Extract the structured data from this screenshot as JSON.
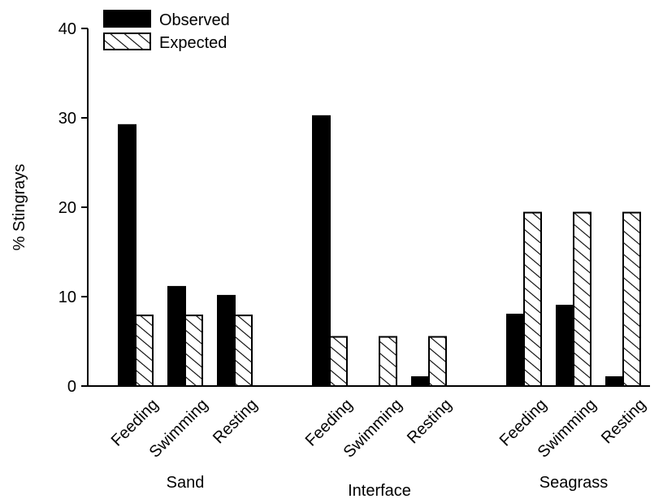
{
  "chart_data": {
    "type": "bar",
    "title": "",
    "xlabel": "",
    "ylabel": "% Stingrays",
    "ylim": [
      0,
      40
    ],
    "yticks": [
      0,
      10,
      20,
      30,
      40
    ],
    "grid": false,
    "legend_position": "top-left",
    "groups": [
      "Sand",
      "Interface",
      "Seagrass"
    ],
    "categories": [
      "Feeding",
      "Swimming",
      "Resting"
    ],
    "series": [
      {
        "name": "Observed",
        "pattern": "solid",
        "color": "#000000",
        "values": [
          [
            29.2,
            11.1,
            10.1
          ],
          [
            30.2,
            0,
            1.0
          ],
          [
            8.0,
            9.0,
            1.0
          ]
        ]
      },
      {
        "name": "Expected",
        "pattern": "hatched",
        "color": "#000000",
        "values": [
          [
            7.9,
            7.9,
            7.9
          ],
          [
            5.5,
            5.5,
            5.5
          ],
          [
            19.4,
            19.4,
            19.4
          ]
        ]
      }
    ]
  }
}
